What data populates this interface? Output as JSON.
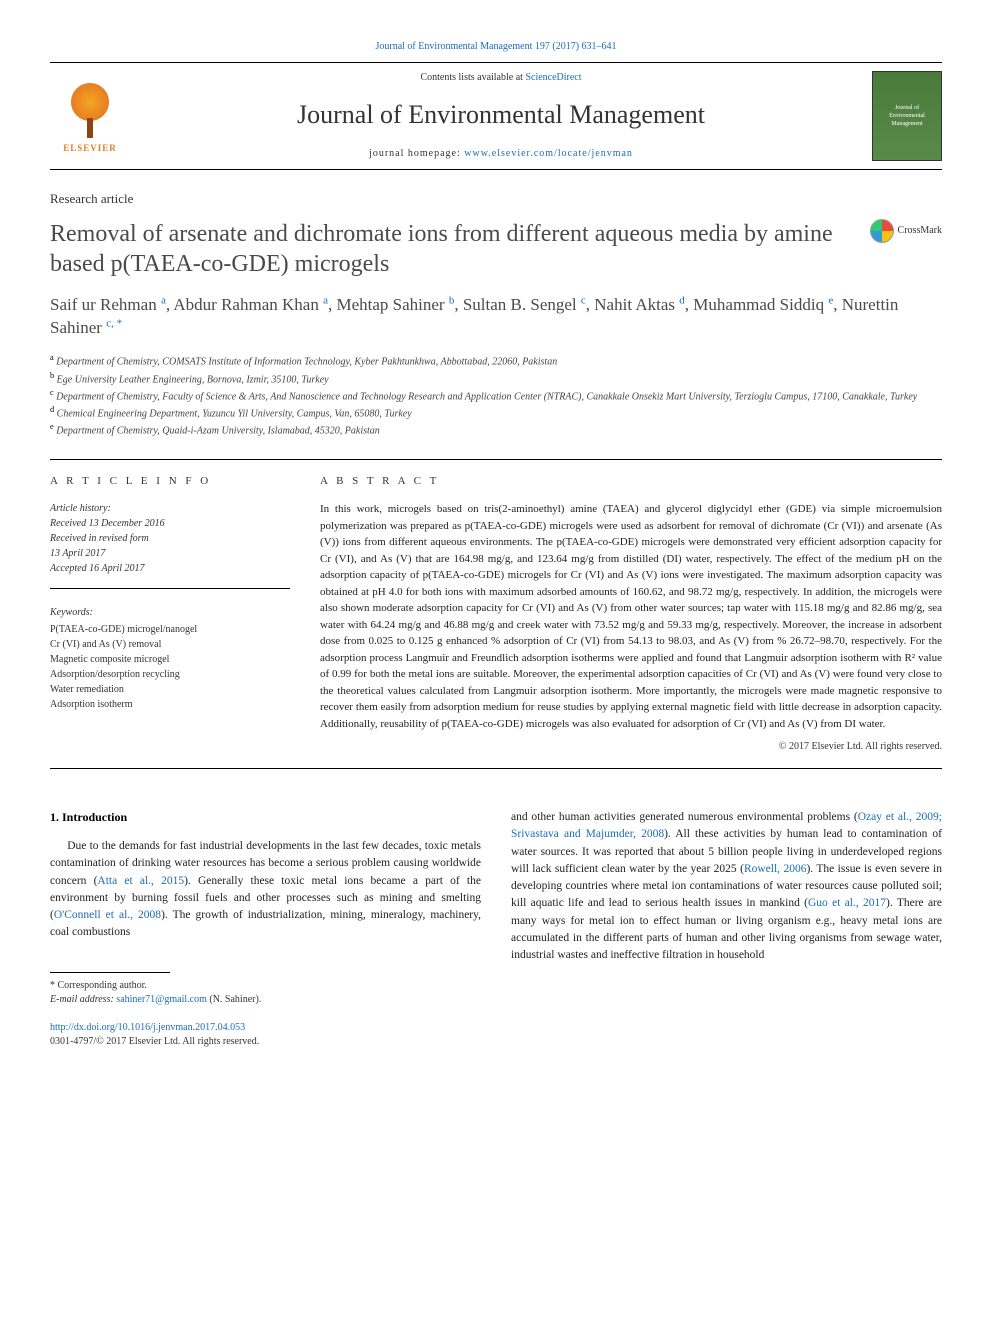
{
  "journal_ref": "Journal of Environmental Management 197 (2017) 631–641",
  "header": {
    "contents_prefix": "Contents lists available at ",
    "contents_link": "ScienceDirect",
    "journal_title": "Journal of Environmental Management",
    "homepage_prefix": "journal homepage: ",
    "homepage_link": "www.elsevier.com/locate/jenvman",
    "publisher_name": "ELSEVIER",
    "cover_text": "Journal of Environmental Management"
  },
  "article_type": "Research article",
  "title": "Removal of arsenate and dichromate ions from different aqueous media by amine based p(TAEA-co-GDE) microgels",
  "crossmark_label": "CrossMark",
  "authors_html": "Saif ur Rehman <sup>a</sup>, Abdur Rahman Khan <sup>a</sup>, Mehtap Sahiner <sup>b</sup>, Sultan B. Sengel <sup>c</sup>, Nahit Aktas <sup>d</sup>, Muhammad Siddiq <sup>e</sup>, Nurettin Sahiner <sup>c, *</sup>",
  "affiliations": [
    "a Department of Chemistry, COMSATS Institute of Information Technology, Kyber Pakhtunkhwa, Abbottabad, 22060, Pakistan",
    "b Ege University Leather Engineering, Bornova, Izmir, 35100, Turkey",
    "c Department of Chemistry, Faculty of Science & Arts, And Nanoscience and Technology Research and Application Center (NTRAC), Canakkale Onsekiz Mart University, Terzioglu Campus, 17100, Canakkale, Turkey",
    "d Chemical Engineering Department, Yuzuncu Yil University, Campus, Van, 65080, Turkey",
    "e Department of Chemistry, Quaid-i-Azam University, Islamabad, 45320, Pakistan"
  ],
  "article_info": {
    "heading": "A R T I C L E   I N F O",
    "history_label": "Article history:",
    "history": [
      "Received 13 December 2016",
      "Received in revised form",
      "13 April 2017",
      "Accepted 16 April 2017"
    ],
    "keywords_label": "Keywords:",
    "keywords": [
      "P(TAEA-co-GDE) microgel/nanogel",
      "Cr (VI) and As (V) removal",
      "Magnetic composite microgel",
      "Adsorption/desorption recycling",
      "Water remediation",
      "Adsorption isotherm"
    ]
  },
  "abstract": {
    "heading": "A B S T R A C T",
    "text": "In this work, microgels based on tris(2-aminoethyl) amine (TAEA) and glycerol diglycidyl ether (GDE) via simple microemulsion polymerization was prepared as p(TAEA-co-GDE) microgels were used as adsorbent for removal of dichromate (Cr (VI)) and arsenate (As (V)) ions from different aqueous environments. The p(TAEA-co-GDE) microgels were demonstrated very efficient adsorption capacity for Cr (VI), and As (V) that are 164.98 mg/g, and 123.64 mg/g from distilled (DI) water, respectively. The effect of the medium pH on the adsorption capacity of p(TAEA-co-GDE) microgels for Cr (VI) and As (V) ions were investigated. The maximum adsorption capacity was obtained at pH 4.0 for both ions with maximum adsorbed amounts of 160.62, and 98.72 mg/g, respectively. In addition, the microgels were also shown moderate adsorption capacity for Cr (VI) and As (V) from other water sources; tap water with 115.18 mg/g and 82.86 mg/g, sea water with 64.24 mg/g and 46.88 mg/g and creek water with 73.52 mg/g and 59.33 mg/g, respectively. Moreover, the increase in adsorbent dose from 0.025 to 0.125 g enhanced % adsorption of Cr (VI) from 54.13 to 98.03, and As (V) from % 26.72–98.70, respectively. For the adsorption process Langmuir and Freundlich adsorption isotherms were applied and found that Langmuir adsorption isotherm with R² value of 0.99 for both the metal ions are suitable. Moreover, the experimental adsorption capacities of Cr (VI) and As (V) were found very close to the theoretical values calculated from Langmuir adsorption isotherm. More importantly, the microgels were made magnetic responsive to recover them easily from adsorption medium for reuse studies by applying external magnetic field with little decrease in adsorption capacity. Additionally, reusability of p(TAEA-co-GDE) microgels was also evaluated for adsorption of Cr (VI) and As (V) from DI water.",
    "copyright": "© 2017 Elsevier Ltd. All rights reserved."
  },
  "body": {
    "intro_heading": "1. Introduction",
    "col1": "Due to the demands for fast industrial developments in the last few decades, toxic metals contamination of drinking water resources has become a serious problem causing worldwide concern (Atta et al., 2015). Generally these toxic metal ions became a part of the environment by burning fossil fuels and other processes such as mining and smelting (O'Connell et al., 2008). The growth of industrialization, mining, mineralogy, machinery, coal combustions",
    "col2": "and other human activities generated numerous environmental problems (Ozay et al., 2009; Srivastava and Majumder, 2008). All these activities by human lead to contamination of water sources. It was reported that about 5 billion people living in underdeveloped regions will lack sufficient clean water by the year 2025 (Rowell, 2006). The issue is even severe in developing countries where metal ion contaminations of water resources cause polluted soil; kill aquatic life and lead to serious health issues in mankind (Guo et al., 2017). There are many ways for metal ion to effect human or living organism e.g., heavy metal ions are accumulated in the different parts of human and other living organisms from sewage water, industrial wastes and ineffective filtration in household"
  },
  "footnote": {
    "corr_label": "* Corresponding author.",
    "email_label": "E-mail address: ",
    "email": "sahiner71@gmail.com",
    "email_suffix": " (N. Sahiner)."
  },
  "footer": {
    "doi": "http://dx.doi.org/10.1016/j.jenvman.2017.04.053",
    "issn_line": "0301-4797/© 2017 Elsevier Ltd. All rights reserved."
  },
  "colors": {
    "link": "#1a6cb8",
    "text": "#222222",
    "heading": "#4a4a4a"
  }
}
